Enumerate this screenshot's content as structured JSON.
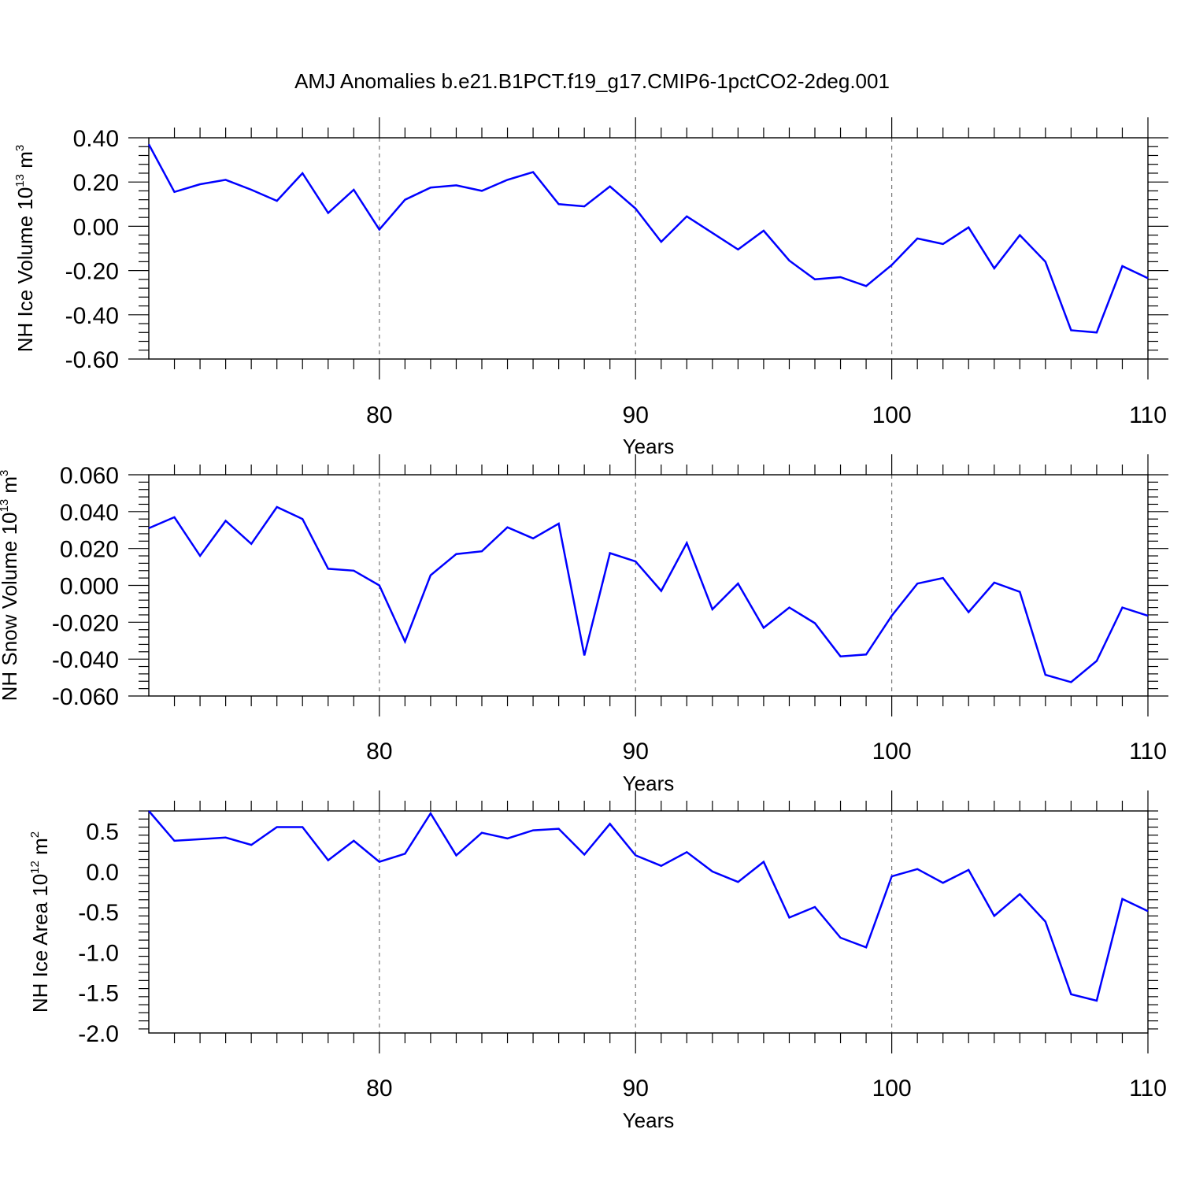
{
  "title": "AMJ Anomalies b.e21.B1PCT.f19_g17.CMIP6-1pctCO2-2deg.001",
  "line_color": "#0000ff",
  "chart_data": [
    {
      "type": "line",
      "ylabel": {
        "text": "NH Ice Volume 10",
        "exp": "13",
        "unit": " m",
        "unit_exp": "3"
      },
      "xlabel": "Years",
      "xlim": [
        71,
        110
      ],
      "ylim": [
        -0.6,
        0.4
      ],
      "xticks": [
        "80",
        "90",
        "100",
        "110"
      ],
      "yticks": [
        "0.40",
        "0.20",
        "0.00",
        "-0.20",
        "-0.40",
        "-0.60"
      ],
      "grid": "dashed vertical at major x ticks",
      "series": [
        {
          "x": [
            71,
            72,
            73,
            74,
            75,
            76,
            77,
            78,
            79,
            80,
            81,
            82,
            83,
            84,
            85,
            86,
            87,
            88,
            89,
            90,
            91,
            92,
            93,
            94,
            95,
            96,
            97,
            98,
            99,
            100,
            101,
            102,
            103,
            104,
            105,
            106,
            107,
            108,
            109,
            110
          ],
          "y": [
            0.37,
            0.155,
            0.19,
            0.21,
            0.165,
            0.115,
            0.24,
            0.06,
            0.165,
            -0.015,
            0.12,
            0.175,
            0.185,
            0.16,
            0.21,
            0.245,
            0.1,
            0.09,
            0.18,
            0.08,
            -0.07,
            0.045,
            -0.03,
            -0.105,
            -0.02,
            -0.155,
            -0.24,
            -0.23,
            -0.27,
            -0.175,
            -0.055,
            -0.08,
            -0.005,
            -0.19,
            -0.04,
            -0.16,
            -0.47,
            -0.48,
            -0.18,
            -0.235
          ]
        }
      ]
    },
    {
      "type": "line",
      "ylabel": {
        "text": "NH Snow Volume 10",
        "exp": "13",
        "unit": " m",
        "unit_exp": "3"
      },
      "xlabel": "Years",
      "xlim": [
        71,
        110
      ],
      "ylim": [
        -0.06,
        0.06
      ],
      "xticks": [
        "80",
        "90",
        "100",
        "110"
      ],
      "yticks": [
        "0.060",
        "0.040",
        "0.020",
        "0.000",
        "-0.020",
        "-0.040",
        "-0.060"
      ],
      "grid": "dashed vertical at major x ticks",
      "series": [
        {
          "x": [
            71,
            72,
            73,
            74,
            75,
            76,
            77,
            78,
            79,
            80,
            81,
            82,
            83,
            84,
            85,
            86,
            87,
            88,
            89,
            90,
            91,
            92,
            93,
            94,
            95,
            96,
            97,
            98,
            99,
            100,
            101,
            102,
            103,
            104,
            105,
            106,
            107,
            108,
            109,
            110
          ],
          "y": [
            0.031,
            0.037,
            0.016,
            0.035,
            0.0225,
            0.0425,
            0.036,
            0.009,
            0.008,
            0.0,
            -0.0305,
            0.0055,
            0.017,
            0.0185,
            0.0315,
            0.0255,
            0.0335,
            -0.038,
            0.0175,
            0.013,
            -0.003,
            0.023,
            -0.013,
            0.001,
            -0.023,
            -0.012,
            -0.0205,
            -0.0385,
            -0.0375,
            -0.0165,
            0.001,
            0.004,
            -0.0145,
            0.0015,
            -0.0035,
            -0.0485,
            -0.0525,
            -0.041,
            -0.012,
            -0.0165
          ]
        }
      ]
    },
    {
      "type": "line",
      "ylabel": {
        "text": "NH Ice Area 10",
        "exp": "12",
        "unit": " m",
        "unit_exp": "2"
      },
      "xlabel": "Years",
      "xlim": [
        71,
        110
      ],
      "ylim": [
        -2.0,
        0.75
      ],
      "xticks": [
        "80",
        "90",
        "100",
        "110"
      ],
      "yticks": [
        "0.5",
        "0.0",
        "-0.5",
        "-1.0",
        "-1.5",
        "-2.0"
      ],
      "grid": "dashed vertical at major x ticks",
      "series": [
        {
          "x": [
            71,
            72,
            73,
            74,
            75,
            76,
            77,
            78,
            79,
            80,
            81,
            82,
            83,
            84,
            85,
            86,
            87,
            88,
            89,
            90,
            91,
            92,
            93,
            94,
            95,
            96,
            97,
            98,
            99,
            100,
            101,
            102,
            103,
            104,
            105,
            106,
            107,
            108,
            109,
            110
          ],
          "y": [
            0.75,
            0.38,
            0.4,
            0.42,
            0.33,
            0.55,
            0.55,
            0.14,
            0.38,
            0.12,
            0.22,
            0.72,
            0.2,
            0.48,
            0.41,
            0.51,
            0.53,
            0.21,
            0.59,
            0.2,
            0.07,
            0.24,
            0.0,
            -0.13,
            0.12,
            -0.57,
            -0.44,
            -0.82,
            -0.94,
            -0.06,
            0.03,
            -0.14,
            0.02,
            -0.55,
            -0.28,
            -0.62,
            -1.52,
            -1.6,
            -0.34,
            -0.49
          ]
        }
      ]
    }
  ]
}
